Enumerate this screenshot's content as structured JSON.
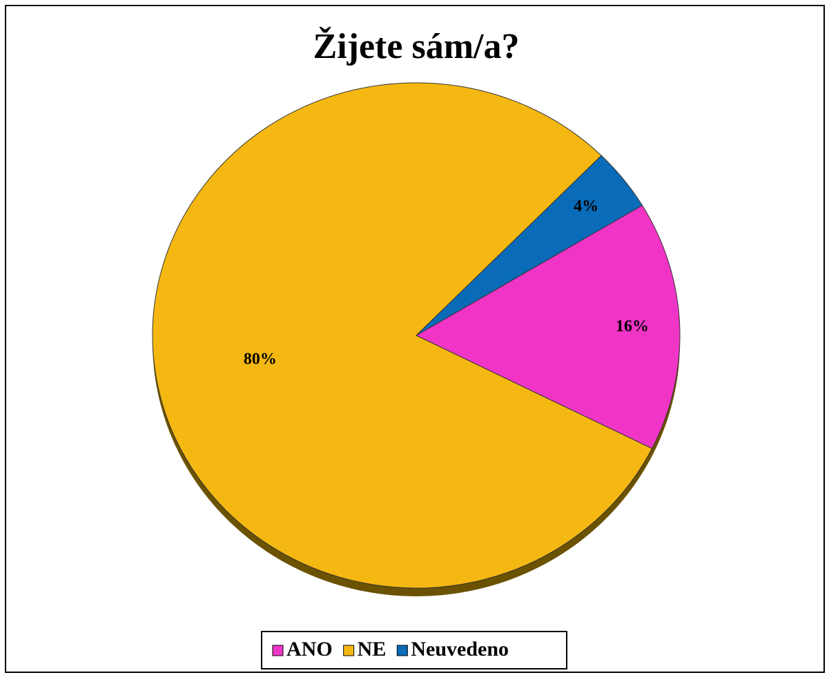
{
  "chart_data": {
    "type": "pie",
    "title": "Žijete sám/a?",
    "categories": [
      "ANO",
      "NE",
      "Neuvedeno"
    ],
    "values": [
      16,
      80,
      4
    ],
    "value_labels": [
      "16%",
      "80%",
      "4%"
    ],
    "colors": [
      "#f035c6",
      "#f5b812",
      "#0a6bb8"
    ],
    "legend": "bottom"
  }
}
